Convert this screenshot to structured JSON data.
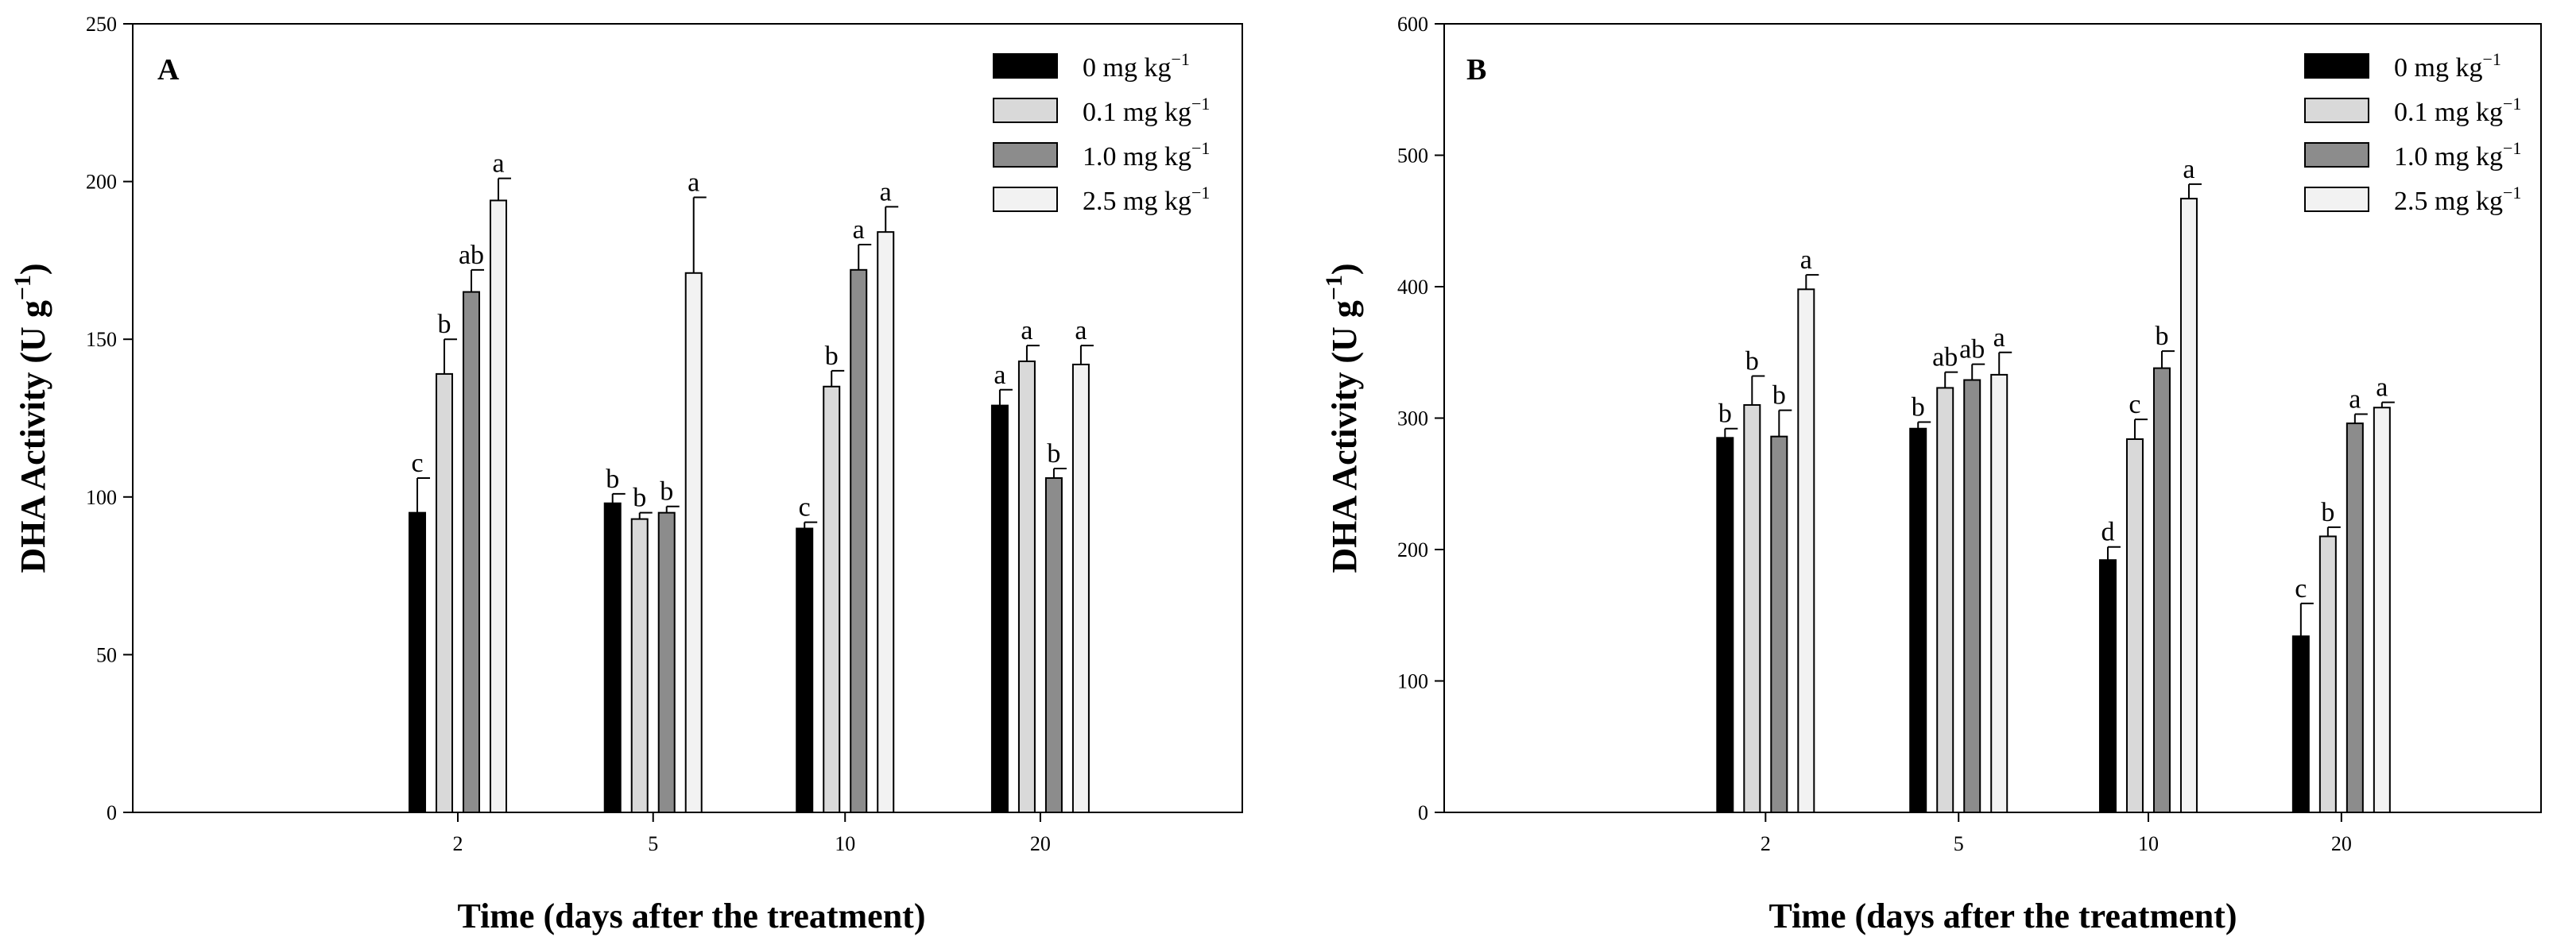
{
  "figure": {
    "panels": [
      "A",
      "B"
    ],
    "legend_unit_base": "mg kg",
    "legend_unit_exp": "−1",
    "ylabel_main": "DHA Activity (U g",
    "ylabel_exp": "−1",
    "ylabel_close": ")"
  },
  "chart_data": [
    {
      "type": "bar",
      "panel_label": "A",
      "xlabel": "Time (days after the treatment)",
      "ylabel": "DHA Activity (U g−1)",
      "ylim": [
        0,
        250
      ],
      "yticks": [
        0,
        50,
        100,
        150,
        200,
        250
      ],
      "categories": [
        "2",
        "5",
        "10",
        "20"
      ],
      "legend_position": "top-right",
      "series": [
        {
          "name": "0 mg kg−1",
          "dose": "0",
          "color": "#000000",
          "values": [
            95,
            98,
            90,
            129
          ],
          "errors": [
            11,
            3,
            2,
            5
          ],
          "letters": [
            "c",
            "b",
            "c",
            "a"
          ]
        },
        {
          "name": "0.1 mg kg−1",
          "dose": "0.1",
          "color": "#d9d9d9",
          "values": [
            139,
            93,
            135,
            143
          ],
          "errors": [
            11,
            2,
            5,
            5
          ],
          "letters": [
            "b",
            "b",
            "b",
            "a"
          ]
        },
        {
          "name": "1.0 mg kg−1",
          "dose": "1.0",
          "color": "#8c8c8c",
          "values": [
            165,
            95,
            172,
            106
          ],
          "errors": [
            7,
            2,
            8,
            3
          ],
          "letters": [
            "ab",
            "b",
            "a",
            "b"
          ]
        },
        {
          "name": "2.5 mg kg−1",
          "dose": "2.5",
          "color": "#f2f2f2",
          "values": [
            194,
            171,
            184,
            142
          ],
          "errors": [
            7,
            24,
            8,
            6
          ],
          "letters": [
            "a",
            "a",
            "a",
            "a"
          ]
        }
      ]
    },
    {
      "type": "bar",
      "panel_label": "B",
      "xlabel": "Time (days after the treatment)",
      "ylabel": "DHA Activity (U g−1)",
      "ylim": [
        0,
        600
      ],
      "yticks": [
        0,
        100,
        200,
        300,
        400,
        500,
        600
      ],
      "categories": [
        "2",
        "5",
        "10",
        "20"
      ],
      "legend_position": "top-right",
      "series": [
        {
          "name": "0 mg kg−1",
          "dose": "0",
          "color": "#000000",
          "values": [
            285,
            292,
            192,
            134
          ],
          "errors": [
            7,
            5,
            10,
            25
          ],
          "letters": [
            "b",
            "b",
            "d",
            "c"
          ]
        },
        {
          "name": "0.1 mg kg−1",
          "dose": "0.1",
          "color": "#d9d9d9",
          "values": [
            310,
            323,
            284,
            210
          ],
          "errors": [
            22,
            12,
            15,
            7
          ],
          "letters": [
            "b",
            "ab",
            "c",
            "b"
          ]
        },
        {
          "name": "1.0 mg kg−1",
          "dose": "1.0",
          "color": "#8c8c8c",
          "values": [
            286,
            329,
            338,
            296
          ],
          "errors": [
            20,
            12,
            13,
            7
          ],
          "letters": [
            "b",
            "ab",
            "b",
            "a"
          ]
        },
        {
          "name": "2.5 mg kg−1",
          "dose": "2.5",
          "color": "#f2f2f2",
          "values": [
            398,
            333,
            467,
            308
          ],
          "errors": [
            11,
            17,
            11,
            4
          ],
          "letters": [
            "a",
            "a",
            "a",
            "a"
          ]
        }
      ]
    }
  ]
}
